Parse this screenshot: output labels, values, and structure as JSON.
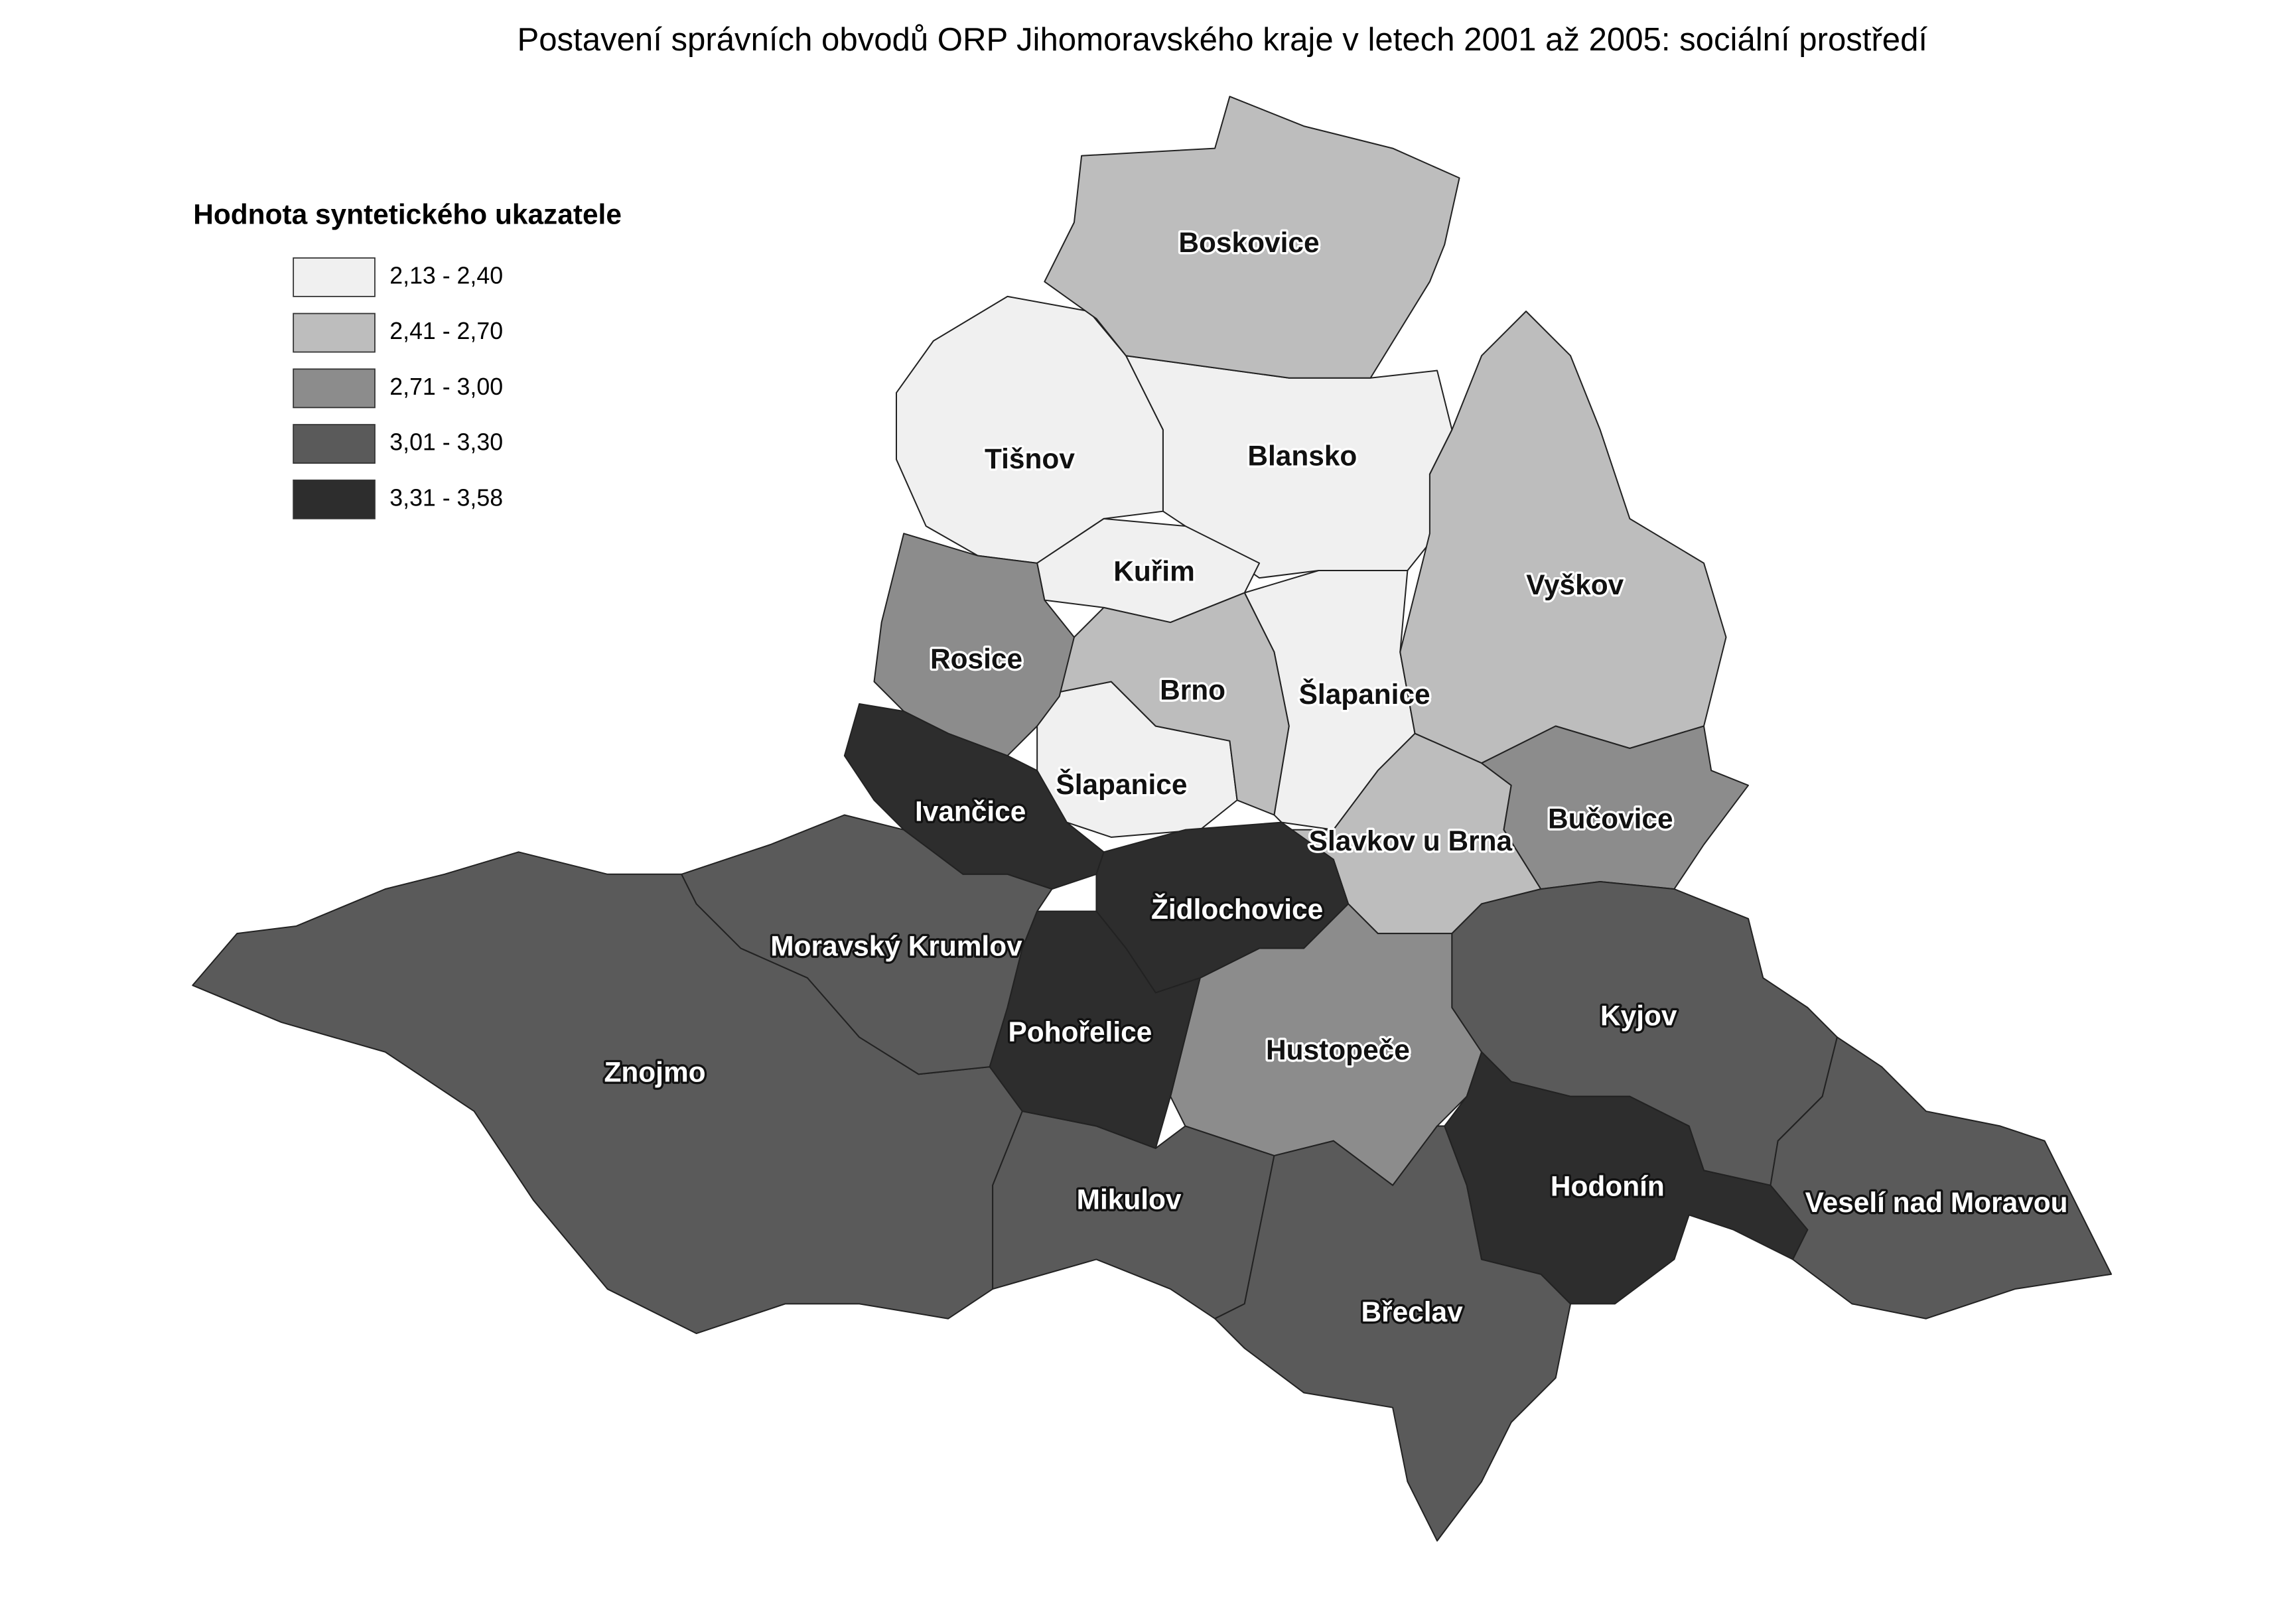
{
  "title": "Postavení správních obvodů ORP Jihomoravského kraje v letech 2001 až 2005: sociální prostředí",
  "legend": {
    "title": "Hodnota syntetického ukazatele",
    "classes": [
      {
        "label": "2,13 - 2,40",
        "color": "#f0f0f0",
        "regions": [
          "Tišnov",
          "Blansko",
          "Kuřim",
          "Šlapanice"
        ]
      },
      {
        "label": "2,41 - 2,70",
        "color": "#bdbdbd",
        "regions": [
          "Boskovice",
          "Vyškov",
          "Slavkov u Brna",
          "Brno"
        ]
      },
      {
        "label": "2,71 - 3,00",
        "color": "#8c8c8c",
        "regions": [
          "Rosice",
          "Bučovice",
          "Hustopeče"
        ]
      },
      {
        "label": "3,01 - 3,30",
        "color": "#5a5a5a",
        "regions": [
          "Znojmo",
          "Moravský Krumlov",
          "Mikulov",
          "Břeclav",
          "Kyjov",
          "Veselí nad Moravou"
        ]
      },
      {
        "label": "3,31 - 3,58",
        "color": "#2d2d2d",
        "regions": [
          "Ivančice",
          "Židlochovice",
          "Pohořelice",
          "Hodonín"
        ]
      }
    ]
  }
}
